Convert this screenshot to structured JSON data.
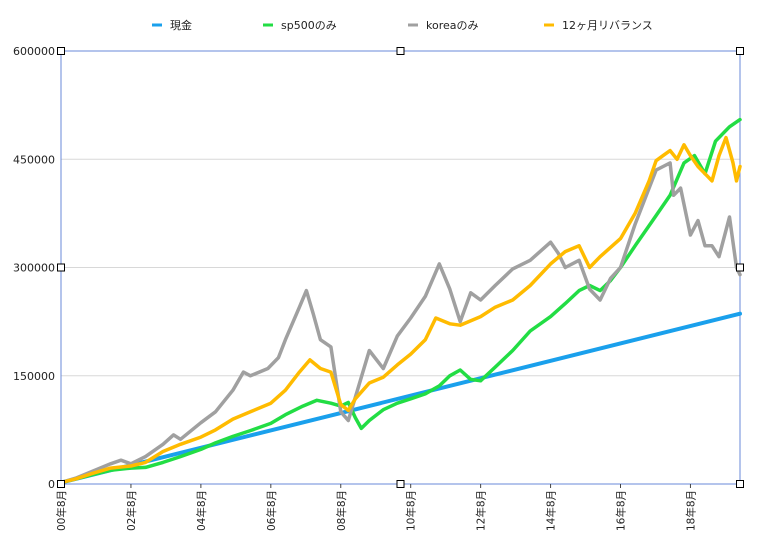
{
  "chart_data": {
    "type": "line",
    "title": "",
    "xlabel": "",
    "ylabel": "",
    "ylim": [
      0,
      600000
    ],
    "yticks": [
      "0",
      "150000",
      "300000",
      "450000",
      "600000"
    ],
    "ytick_values": [
      0,
      150000,
      300000,
      450000,
      600000
    ],
    "xlim": [
      2000.583,
      2020.0
    ],
    "xticks": [
      "00年8月",
      "02年8月",
      "04年8月",
      "06年8月",
      "08年8月",
      "10年8月",
      "12年8月",
      "14年8月",
      "16年8月",
      "18年8月"
    ],
    "xtick_values": [
      2000.583,
      2002.583,
      2004.583,
      2006.583,
      2008.583,
      2010.583,
      2012.583,
      2014.583,
      2016.583,
      2018.583
    ],
    "legend_position": "top",
    "grid": true,
    "series": [
      {
        "name": "現金",
        "color": "#1aa0ec",
        "points": [
          [
            2000.583,
            2000
          ],
          [
            2020.0,
            236000
          ]
        ]
      },
      {
        "name": "sp500のみ",
        "color": "#22dd44",
        "points": [
          [
            2000.583,
            2000
          ],
          [
            2001.0,
            7000
          ],
          [
            2001.5,
            13000
          ],
          [
            2002.0,
            19000
          ],
          [
            2002.583,
            22000
          ],
          [
            2003.0,
            23000
          ],
          [
            2003.5,
            30000
          ],
          [
            2004.0,
            38000
          ],
          [
            2004.583,
            48000
          ],
          [
            2005.0,
            57000
          ],
          [
            2005.5,
            66000
          ],
          [
            2006.0,
            74000
          ],
          [
            2006.583,
            84000
          ],
          [
            2007.0,
            96000
          ],
          [
            2007.5,
            108000
          ],
          [
            2007.9,
            116000
          ],
          [
            2008.3,
            112000
          ],
          [
            2008.583,
            108000
          ],
          [
            2008.8,
            113000
          ],
          [
            2009.0,
            92000
          ],
          [
            2009.17,
            77000
          ],
          [
            2009.4,
            88000
          ],
          [
            2009.8,
            103000
          ],
          [
            2010.2,
            112000
          ],
          [
            2010.583,
            118000
          ],
          [
            2011.0,
            125000
          ],
          [
            2011.4,
            136000
          ],
          [
            2011.7,
            150000
          ],
          [
            2012.0,
            158000
          ],
          [
            2012.3,
            145000
          ],
          [
            2012.583,
            143000
          ],
          [
            2013.0,
            162000
          ],
          [
            2013.5,
            185000
          ],
          [
            2014.0,
            212000
          ],
          [
            2014.583,
            232000
          ],
          [
            2015.0,
            250000
          ],
          [
            2015.4,
            268000
          ],
          [
            2015.7,
            275000
          ],
          [
            2016.0,
            268000
          ],
          [
            2016.3,
            282000
          ],
          [
            2016.583,
            300000
          ],
          [
            2017.0,
            330000
          ],
          [
            2017.5,
            365000
          ],
          [
            2018.0,
            400000
          ],
          [
            2018.4,
            445000
          ],
          [
            2018.7,
            455000
          ],
          [
            2019.0,
            430000
          ],
          [
            2019.3,
            475000
          ],
          [
            2019.7,
            495000
          ],
          [
            2020.0,
            505000
          ]
        ]
      },
      {
        "name": "koreaのみ",
        "color": "#a0a0a0",
        "points": [
          [
            2000.583,
            2000
          ],
          [
            2001.0,
            8000
          ],
          [
            2001.5,
            18000
          ],
          [
            2002.0,
            28000
          ],
          [
            2002.3,
            33000
          ],
          [
            2002.583,
            28000
          ],
          [
            2003.0,
            38000
          ],
          [
            2003.5,
            55000
          ],
          [
            2003.8,
            68000
          ],
          [
            2004.0,
            62000
          ],
          [
            2004.583,
            85000
          ],
          [
            2005.0,
            100000
          ],
          [
            2005.5,
            130000
          ],
          [
            2005.8,
            155000
          ],
          [
            2006.0,
            150000
          ],
          [
            2006.5,
            160000
          ],
          [
            2006.8,
            175000
          ],
          [
            2007.0,
            200000
          ],
          [
            2007.4,
            245000
          ],
          [
            2007.6,
            268000
          ],
          [
            2007.8,
            235000
          ],
          [
            2008.0,
            200000
          ],
          [
            2008.3,
            190000
          ],
          [
            2008.583,
            100000
          ],
          [
            2008.8,
            88000
          ],
          [
            2009.0,
            120000
          ],
          [
            2009.4,
            185000
          ],
          [
            2009.8,
            160000
          ],
          [
            2010.2,
            205000
          ],
          [
            2010.583,
            230000
          ],
          [
            2011.0,
            260000
          ],
          [
            2011.4,
            305000
          ],
          [
            2011.7,
            270000
          ],
          [
            2012.0,
            225000
          ],
          [
            2012.3,
            265000
          ],
          [
            2012.583,
            255000
          ],
          [
            2013.0,
            275000
          ],
          [
            2013.5,
            298000
          ],
          [
            2014.0,
            310000
          ],
          [
            2014.583,
            335000
          ],
          [
            2014.8,
            320000
          ],
          [
            2015.0,
            300000
          ],
          [
            2015.4,
            310000
          ],
          [
            2015.7,
            270000
          ],
          [
            2016.0,
            255000
          ],
          [
            2016.3,
            285000
          ],
          [
            2016.583,
            300000
          ],
          [
            2017.0,
            360000
          ],
          [
            2017.4,
            410000
          ],
          [
            2017.6,
            435000
          ],
          [
            2017.8,
            440000
          ],
          [
            2018.0,
            445000
          ],
          [
            2018.1,
            400000
          ],
          [
            2018.3,
            410000
          ],
          [
            2018.583,
            345000
          ],
          [
            2018.8,
            365000
          ],
          [
            2019.0,
            330000
          ],
          [
            2019.2,
            330000
          ],
          [
            2019.4,
            315000
          ],
          [
            2019.7,
            370000
          ],
          [
            2019.9,
            300000
          ],
          [
            2020.0,
            290000
          ]
        ]
      },
      {
        "name": "12ヶ月リバランス",
        "color": "#ffbb00",
        "points": [
          [
            2000.583,
            2000
          ],
          [
            2001.0,
            7000
          ],
          [
            2001.5,
            15000
          ],
          [
            2002.0,
            22000
          ],
          [
            2002.583,
            25000
          ],
          [
            2003.0,
            30000
          ],
          [
            2003.5,
            45000
          ],
          [
            2004.0,
            55000
          ],
          [
            2004.583,
            65000
          ],
          [
            2005.0,
            75000
          ],
          [
            2005.5,
            90000
          ],
          [
            2006.0,
            100000
          ],
          [
            2006.583,
            112000
          ],
          [
            2007.0,
            130000
          ],
          [
            2007.4,
            155000
          ],
          [
            2007.7,
            172000
          ],
          [
            2008.0,
            160000
          ],
          [
            2008.3,
            155000
          ],
          [
            2008.583,
            110000
          ],
          [
            2008.8,
            102000
          ],
          [
            2009.0,
            118000
          ],
          [
            2009.4,
            140000
          ],
          [
            2009.8,
            148000
          ],
          [
            2010.2,
            165000
          ],
          [
            2010.583,
            180000
          ],
          [
            2011.0,
            200000
          ],
          [
            2011.3,
            230000
          ],
          [
            2011.7,
            222000
          ],
          [
            2012.0,
            220000
          ],
          [
            2012.583,
            232000
          ],
          [
            2013.0,
            245000
          ],
          [
            2013.5,
            255000
          ],
          [
            2014.0,
            275000
          ],
          [
            2014.583,
            305000
          ],
          [
            2015.0,
            322000
          ],
          [
            2015.4,
            330000
          ],
          [
            2015.7,
            300000
          ],
          [
            2016.0,
            315000
          ],
          [
            2016.583,
            340000
          ],
          [
            2017.0,
            375000
          ],
          [
            2017.4,
            420000
          ],
          [
            2017.6,
            448000
          ],
          [
            2017.8,
            455000
          ],
          [
            2018.0,
            462000
          ],
          [
            2018.2,
            450000
          ],
          [
            2018.4,
            470000
          ],
          [
            2018.583,
            455000
          ],
          [
            2018.8,
            440000
          ],
          [
            2019.0,
            430000
          ],
          [
            2019.2,
            420000
          ],
          [
            2019.4,
            455000
          ],
          [
            2019.6,
            480000
          ],
          [
            2019.8,
            445000
          ],
          [
            2019.9,
            420000
          ],
          [
            2020.0,
            440000
          ]
        ]
      }
    ]
  }
}
